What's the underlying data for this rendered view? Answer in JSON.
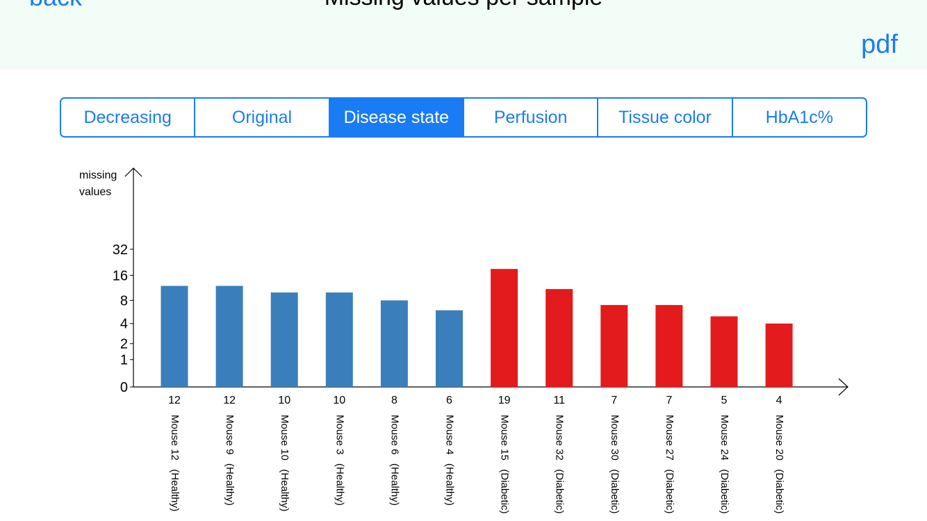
{
  "nav": {
    "back_label": "back",
    "title": "Missing values per sample",
    "pdf_label": "pdf"
  },
  "segments": [
    {
      "label": "Decreasing",
      "selected": false
    },
    {
      "label": "Original",
      "selected": false
    },
    {
      "label": "Disease state",
      "selected": true
    },
    {
      "label": "Perfusion",
      "selected": false
    },
    {
      "label": "Tissue color",
      "selected": false
    },
    {
      "label": "HbA1c%",
      "selected": false
    }
  ],
  "colors": {
    "accent": "#1a7cf4",
    "navbar_bg": "#f3fdf8",
    "healthy": "#3a7fbb",
    "diabetic": "#e31b1c"
  },
  "chart_data": {
    "type": "bar",
    "ylabel": "missing\nvalues",
    "yscale": "log2",
    "yticks": [
      0,
      1,
      2,
      4,
      8,
      16,
      32
    ],
    "categories": [
      "Mouse 12   (Healthy)",
      "Mouse 9   (Healthy)",
      "Mouse 10   (Healthy)",
      "Mouse 3   (Healthy)",
      "Mouse 6   (Healthy)",
      "Mouse 4   (Healthy)",
      "Mouse 15   (Diabetic)",
      "Mouse 32   (Diabetic)",
      "Mouse 30   (Diabetic)",
      "Mouse 27   (Diabetic)",
      "Mouse 24   (Diabetic)",
      "Mouse 20   (Diabetic)"
    ],
    "values": [
      12,
      12,
      10,
      10,
      8,
      6,
      19,
      11,
      7,
      7,
      5,
      4
    ],
    "groups": [
      "healthy",
      "healthy",
      "healthy",
      "healthy",
      "healthy",
      "healthy",
      "diabetic",
      "diabetic",
      "diabetic",
      "diabetic",
      "diabetic",
      "diabetic"
    ],
    "grid": false
  }
}
